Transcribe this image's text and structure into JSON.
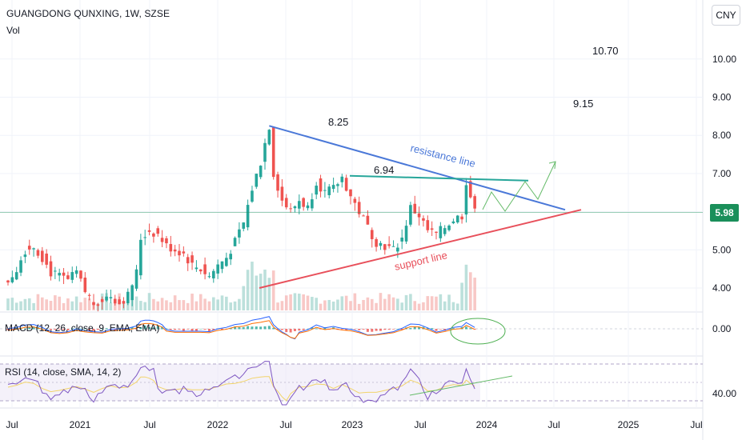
{
  "header": {
    "title": "GUANGDONG QUNXING, 1W, SZSE",
    "volume_label": "Vol",
    "currency_button": "CNY"
  },
  "indicators": {
    "macd_label": "MACD (12, 26, close, 9, EMA, EMA)",
    "rsi_label": "RSI (14, close, SMA, 14, 2)"
  },
  "current_price": "5.98",
  "annotations": {
    "high_label": "8.25",
    "neckline_label": "6.94",
    "target1_label": "9.15",
    "target2_label": "10.70",
    "resistance_label": "resistance line",
    "support_label": "support line"
  },
  "colors": {
    "up": "#26a69a",
    "down": "#ef5350",
    "resistance": "#4a78d8",
    "support": "#e8505b",
    "neckline": "#26a69a",
    "price_tag": "#1a8f5a",
    "rsi_band": "#ede7f6",
    "rsi_line": "#7e57c2"
  },
  "chart_data": {
    "type": "candlestick",
    "interval": "1W",
    "price_axis": {
      "ticks": [
        "4.00",
        "5.00",
        "6.00",
        "7.00",
        "8.00",
        "9.00",
        "10.00"
      ],
      "ylim": [
        3.3,
        11.0
      ]
    },
    "time_axis": {
      "ticks": [
        "Jul",
        "2021",
        "Jul",
        "2022",
        "Jul",
        "2023",
        "Jul",
        "2024",
        "Jul",
        "2025",
        "Jul"
      ]
    },
    "macd_axis": {
      "ticks": [
        "0.00"
      ]
    },
    "rsi_axis": {
      "ticks": [
        "40.00"
      ]
    },
    "price_path": [
      [
        0,
        4.2
      ],
      [
        2,
        4.5
      ],
      [
        4,
        5.0
      ],
      [
        6,
        5.1
      ],
      [
        8,
        4.8
      ],
      [
        10,
        4.4
      ],
      [
        12,
        4.3
      ],
      [
        14,
        4.2
      ],
      [
        16,
        4.4
      ],
      [
        18,
        3.9
      ],
      [
        20,
        3.6
      ],
      [
        22,
        3.7
      ],
      [
        24,
        3.8
      ],
      [
        26,
        3.6
      ],
      [
        28,
        3.8
      ],
      [
        30,
        4.4
      ],
      [
        31,
        5.3
      ],
      [
        33,
        5.5
      ],
      [
        35,
        5.4
      ],
      [
        37,
        5.1
      ],
      [
        39,
        5.0
      ],
      [
        41,
        4.9
      ],
      [
        43,
        4.6
      ],
      [
        45,
        4.5
      ],
      [
        47,
        4.3
      ],
      [
        49,
        4.6
      ],
      [
        51,
        4.8
      ],
      [
        53,
        5.2
      ],
      [
        55,
        5.7
      ],
      [
        57,
        6.6
      ],
      [
        59,
        7.3
      ],
      [
        60,
        7.8
      ],
      [
        61,
        8.25
      ],
      [
        62,
        7.0
      ],
      [
        64,
        6.3
      ],
      [
        66,
        6.0
      ],
      [
        68,
        6.3
      ],
      [
        70,
        6.1
      ],
      [
        72,
        6.8
      ],
      [
        74,
        6.5
      ],
      [
        76,
        6.6
      ],
      [
        78,
        6.9
      ],
      [
        80,
        6.4
      ],
      [
        82,
        6.0
      ],
      [
        84,
        5.6
      ],
      [
        86,
        5.2
      ],
      [
        88,
        5.1
      ],
      [
        90,
        5.0
      ],
      [
        92,
        5.3
      ],
      [
        94,
        6.1
      ],
      [
        96,
        5.9
      ],
      [
        98,
        5.5
      ],
      [
        100,
        5.4
      ],
      [
        102,
        5.6
      ],
      [
        104,
        5.8
      ],
      [
        106,
        5.9
      ],
      [
        107,
        6.8
      ],
      [
        108,
        6.4
      ],
      [
        109,
        5.98
      ]
    ],
    "candle_count": 110,
    "resistance_line": {
      "from_price": 8.25,
      "to_price": 6.05
    },
    "support_line": {
      "from_price": 4.0,
      "to_price": 6.05
    },
    "neckline": {
      "price": 6.94
    },
    "marked_high": 8.25,
    "targets": [
      9.15,
      10.7
    ]
  }
}
